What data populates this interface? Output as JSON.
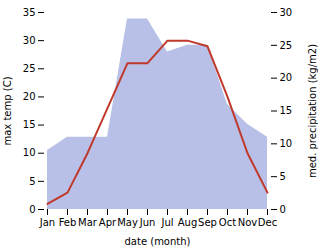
{
  "chart_data": {
    "type": "line",
    "xlabel": "date (month)",
    "ylabel": "max temp (C)",
    "y2label": "med. precipitation (kg/m2)",
    "categories": [
      "Jan",
      "Feb",
      "Mar",
      "Apr",
      "May",
      "Jun",
      "Jul",
      "Aug",
      "Sep",
      "Oct",
      "Nov",
      "Dec"
    ],
    "series": [
      {
        "type": "area",
        "axis": "y2",
        "color": "#b8c0e8",
        "values": [
          9,
          11,
          11,
          11,
          29,
          29,
          24,
          25,
          25,
          16,
          13,
          11
        ]
      },
      {
        "type": "line",
        "color": "#c0392b",
        "values": [
          1,
          3,
          10,
          18,
          26,
          26,
          30,
          30,
          29,
          20,
          10,
          3
        ]
      }
    ],
    "ylim": [
      0,
      35
    ],
    "yticks": [
      0,
      5,
      10,
      15,
      20,
      25,
      30,
      35
    ],
    "y2lim": [
      0,
      30
    ],
    "y2ticks": [
      0,
      5,
      10,
      15,
      20,
      25,
      30
    ],
    "grid": false
  }
}
